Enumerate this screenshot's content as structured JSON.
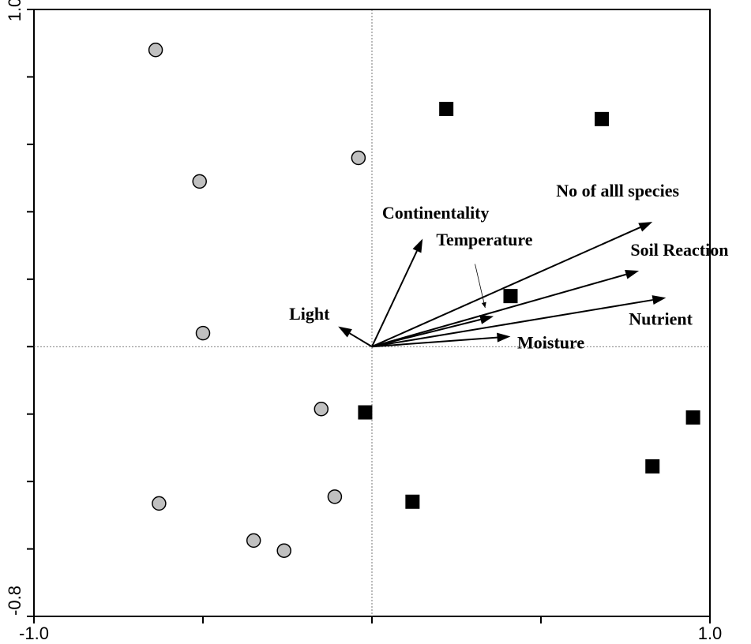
{
  "chart_data": {
    "type": "scatter",
    "title": "",
    "xlabel": "",
    "ylabel": "",
    "xlim": [
      -1.0,
      1.0
    ],
    "ylim": [
      -0.8,
      1.0
    ],
    "x_tick_labels": [
      "-1.0",
      "1.0"
    ],
    "y_tick_labels": [
      "1.0",
      "-0.8"
    ],
    "x_minor_ticks": [
      -0.5,
      0.0,
      0.5
    ],
    "y_minor_ticks": [
      -0.6,
      -0.4,
      -0.2,
      0.0,
      0.2,
      0.4,
      0.6,
      0.8
    ],
    "grid": false,
    "origin_lines": true,
    "series": [
      {
        "marker": "circle",
        "color": "#c0c0c0",
        "points": [
          {
            "x": -0.64,
            "y": 0.88
          },
          {
            "x": -0.51,
            "y": 0.49
          },
          {
            "x": -0.5,
            "y": 0.04
          },
          {
            "x": -0.04,
            "y": 0.56
          },
          {
            "x": -0.15,
            "y": -0.185
          },
          {
            "x": -0.11,
            "y": -0.445
          },
          {
            "x": -0.63,
            "y": -0.465
          },
          {
            "x": -0.35,
            "y": -0.575
          },
          {
            "x": -0.26,
            "y": -0.605
          }
        ]
      },
      {
        "marker": "square",
        "color": "#000000",
        "points": [
          {
            "x": 0.22,
            "y": 0.705
          },
          {
            "x": 0.68,
            "y": 0.675
          },
          {
            "x": 0.41,
            "y": 0.15
          },
          {
            "x": -0.02,
            "y": -0.195
          },
          {
            "x": 0.95,
            "y": -0.21
          },
          {
            "x": 0.83,
            "y": -0.355
          },
          {
            "x": 0.12,
            "y": -0.46
          }
        ]
      }
    ],
    "vectors": [
      {
        "name": "No of alll species",
        "x": 0.83,
        "y": 0.37
      },
      {
        "name": "Soil Reaction",
        "x": 0.79,
        "y": 0.225
      },
      {
        "name": "Nutrient",
        "x": 0.87,
        "y": 0.145
      },
      {
        "name": "Moisture",
        "x": 0.41,
        "y": 0.03
      },
      {
        "name": "Temperature",
        "x": 0.36,
        "y": 0.09
      },
      {
        "name": "Continentality",
        "x": 0.15,
        "y": 0.32
      },
      {
        "name": "Light",
        "x": -0.1,
        "y": 0.06
      }
    ],
    "labels": [
      {
        "text": "No of alll species",
        "x": 0.545,
        "y": 0.445
      },
      {
        "text": "Soil Reaction",
        "x": 0.765,
        "y": 0.27
      },
      {
        "text": "Nutrient",
        "x": 0.76,
        "y": 0.065
      },
      {
        "text": "Moisture",
        "x": 0.43,
        "y": -0.005
      },
      {
        "text": "Temperature",
        "x": 0.19,
        "y": 0.3
      },
      {
        "text": "Continentality",
        "x": 0.03,
        "y": 0.38
      },
      {
        "text": "Light",
        "x": -0.245,
        "y": 0.08
      }
    ]
  }
}
